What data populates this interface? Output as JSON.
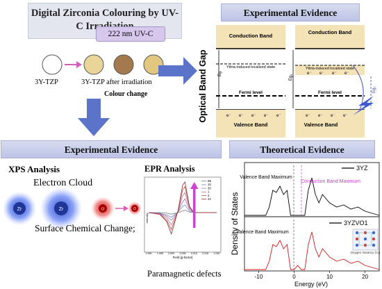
{
  "header": {
    "title": "Digital Zirconia Colouring by UV-C Irradiation",
    "uv_label": "222 nm UV-C",
    "sample_before": "3Y-TZP",
    "sample_after": "3Y-TZP after irradiation",
    "colour_change": "Colour change",
    "colors": {
      "before": "#ffffff",
      "after": [
        "#e9d49a",
        "#a5794e",
        "#e2c780"
      ]
    }
  },
  "top_right": {
    "title": "Experimental Evidence",
    "axis_label": "Optical Band Gap",
    "left": {
      "conduction": "Conduction Band",
      "localized": "Yttria-induced localized state",
      "fermi": "Fermi level",
      "valence": "Valence Band",
      "eg": "Eg",
      "e_chars": "e⁻"
    },
    "right": {
      "conduction": "Conduction Band",
      "localized": "Yttria-induced localized state",
      "fermi": "Fermi level",
      "valence": "Valence Band",
      "eg1": "Eg₁",
      "eg2": "Eg₂",
      "e_chars": "e⁻"
    }
  },
  "bottom_left": {
    "title": "Experimental Evidence",
    "xps": {
      "title": "XPS Analysis",
      "cloud": "Electron Cloud",
      "change": "Surface Chemical Change;",
      "zr": "Zr",
      "o": "O"
    },
    "epr": {
      "title": "EPR Analysis",
      "caption": "Paramagnetic defects",
      "xlabel": "Field [g-factor]",
      "ylabel": "Intensity",
      "legend": [
        "B5",
        "15",
        "30",
        "1",
        "4",
        "24"
      ],
      "xticks": [
        "1.990",
        "1.995",
        "2.000",
        "2.005",
        "2.010",
        "2.015",
        "2.020"
      ]
    }
  },
  "bottom_right": {
    "title": "Theoretical Evidence",
    "ylabel": "Density of States",
    "xlabel": "Energy (eV)",
    "xticks": [
      "-10",
      "0",
      "10",
      "20"
    ],
    "top_panel": {
      "legend": "3YZ",
      "vbm": "Valence Band Maximum",
      "cbm": "Conduction Band Maximum"
    },
    "bottom_panel": {
      "legend": "3YZVO1",
      "vbm": "Valence Band Maximum",
      "inset_caption": "Oxygen Vacancy (Vₒ)"
    }
  },
  "chart_data": [
    {
      "type": "line",
      "title": "EPR Analysis",
      "xlabel": "Field [g-factor]",
      "ylabel": "Intensity",
      "x": [
        1.99,
        1.995,
        1.998,
        2.0,
        2.003,
        2.005,
        2.006,
        2.008,
        2.01,
        2.015,
        2.02
      ],
      "series": [
        {
          "name": "B5",
          "values": [
            0,
            0,
            -0.02,
            -0.05,
            0.0,
            0.05,
            0.08,
            0.02,
            0,
            0,
            0
          ]
        },
        {
          "name": "15",
          "values": [
            0,
            -0.02,
            -0.08,
            -0.15,
            0.02,
            0.2,
            0.25,
            0.05,
            0,
            0,
            0
          ]
        },
        {
          "name": "30",
          "values": [
            0,
            -0.03,
            -0.12,
            -0.25,
            0.03,
            0.35,
            0.45,
            0.1,
            0,
            0,
            0
          ]
        },
        {
          "name": "1",
          "values": [
            0,
            -0.04,
            -0.18,
            -0.4,
            0.05,
            0.55,
            0.65,
            0.15,
            0,
            0,
            0
          ]
        },
        {
          "name": "4",
          "values": [
            0,
            -0.05,
            -0.25,
            -0.55,
            0.06,
            0.75,
            0.85,
            0.18,
            0,
            0,
            0
          ]
        },
        {
          "name": "24",
          "values": [
            0,
            -0.06,
            -0.3,
            -0.7,
            0.08,
            0.9,
            1.0,
            0.2,
            0,
            0,
            0
          ]
        }
      ]
    },
    {
      "type": "line",
      "title": "Density of States",
      "xlabel": "Energy (eV)",
      "ylabel": "Density of States",
      "xlim": [
        -14,
        24
      ],
      "series": [
        {
          "name": "3YZ",
          "x": [
            -14,
            -8,
            -7,
            -6,
            -5,
            -4,
            -3,
            -2,
            -1,
            0,
            3,
            3.5,
            4,
            5,
            6,
            7,
            8,
            9,
            10,
            12,
            14,
            16,
            18,
            20,
            22,
            24
          ],
          "values": [
            0,
            0,
            0.2,
            0.6,
            0.55,
            0.7,
            0.5,
            0.6,
            0,
            0,
            0,
            0.3,
            0.6,
            0.9,
            0.5,
            0.3,
            0.5,
            0.4,
            0.3,
            0.2,
            0.25,
            0.15,
            0.2,
            0.1,
            0.05,
            0
          ]
        },
        {
          "name": "3YZVO1",
          "x": [
            -14,
            -8,
            -7,
            -6,
            -5,
            -4,
            -3,
            -2,
            -1,
            0,
            1,
            2,
            3,
            4,
            5,
            6,
            7,
            8,
            9,
            10,
            12,
            14,
            16,
            18,
            20,
            22,
            24
          ],
          "values": [
            0,
            0,
            0.2,
            0.6,
            0.55,
            0.7,
            0.5,
            0.6,
            0,
            0,
            0.1,
            0,
            0,
            0.6,
            0.9,
            0.5,
            0.3,
            0.5,
            0.4,
            0.3,
            0.2,
            0.25,
            0.15,
            0.2,
            0.1,
            0.05,
            0
          ]
        }
      ]
    }
  ]
}
